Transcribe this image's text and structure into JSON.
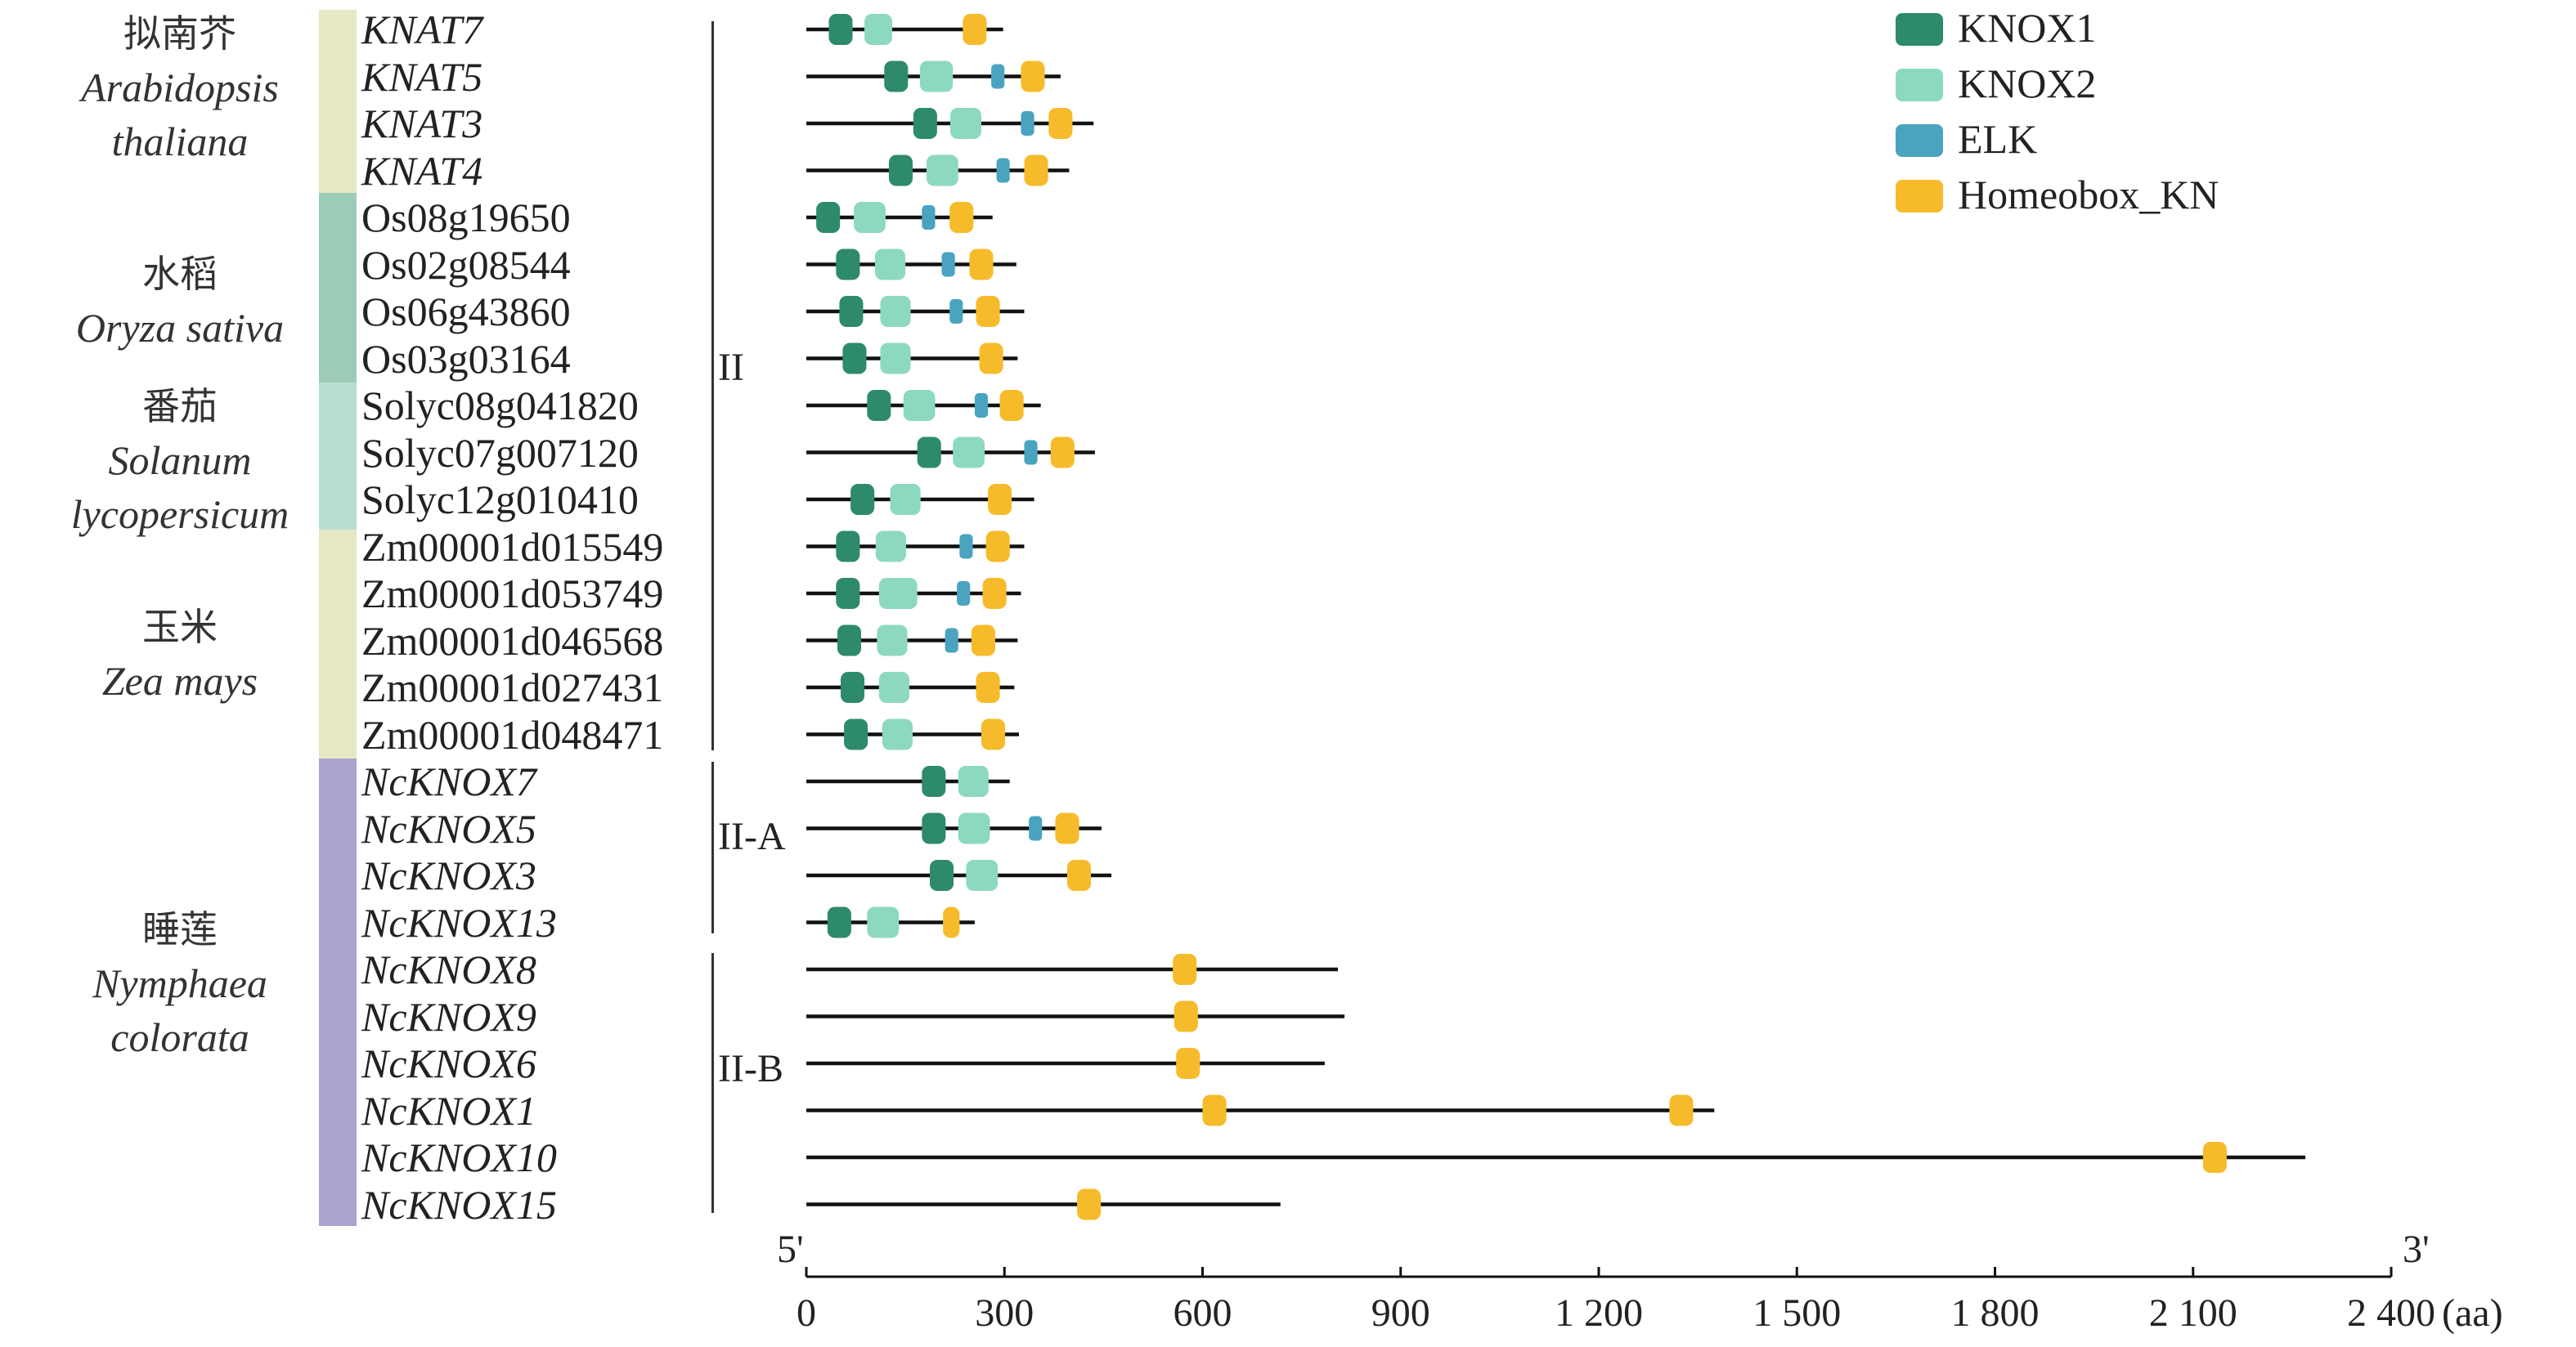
{
  "species": [
    {
      "cn": "拟南芥",
      "latin": [
        "Arabidopsis",
        "thaliana"
      ],
      "color": "#e6e8c3"
    },
    {
      "cn": "水稻",
      "latin": [
        "Oryza sativa"
      ],
      "color": "#9ccbb8"
    },
    {
      "cn": "番茄",
      "latin": [
        "Solanum",
        "lycopersicum"
      ],
      "color": "#b7dfd0"
    },
    {
      "cn": "玉米",
      "latin": [
        "Zea mays"
      ],
      "color": "#e6e8c3"
    },
    {
      "cn": "睡莲",
      "latin": [
        "Nymphaea",
        "colorata"
      ],
      "color": "#a9a4cf"
    }
  ],
  "group_labels": {
    "clade": "II",
    "subA": "II-A",
    "subB": "II-B"
  },
  "legend": [
    {
      "key": "KNOX1",
      "label": "KNOX1",
      "color": "#2e8a6c"
    },
    {
      "key": "KNOX2",
      "label": "KNOX2",
      "color": "#8dd9c0"
    },
    {
      "key": "ELK",
      "label": "ELK",
      "color": "#4aa3bf"
    },
    {
      "key": "HB",
      "label": "Homeobox_KN",
      "color": "#f6bb2a"
    }
  ],
  "axis": {
    "ticks": [
      "0",
      "300",
      "600",
      "900",
      "1 200",
      "1 500",
      "1 800",
      "2 100",
      "2 400"
    ],
    "unit": "(aa)",
    "left_end": "5'",
    "right_end": "3'",
    "max": 2400
  },
  "genes": [
    {
      "name": "KNAT7",
      "italic": true,
      "length": 298,
      "domains": [
        {
          "t": "KNOX1",
          "s": 34,
          "e": 70
        },
        {
          "t": "KNOX2",
          "s": 88,
          "e": 130
        },
        {
          "t": "HB",
          "s": 237,
          "e": 273
        }
      ]
    },
    {
      "name": "KNAT5",
      "italic": true,
      "length": 385,
      "domains": [
        {
          "t": "KNOX1",
          "s": 118,
          "e": 154
        },
        {
          "t": "KNOX2",
          "s": 172,
          "e": 222
        },
        {
          "t": "ELK",
          "s": 280,
          "e": 300
        },
        {
          "t": "HB",
          "s": 325,
          "e": 361
        }
      ]
    },
    {
      "name": "KNAT3",
      "italic": true,
      "length": 435,
      "domains": [
        {
          "t": "KNOX1",
          "s": 162,
          "e": 198
        },
        {
          "t": "KNOX2",
          "s": 218,
          "e": 265
        },
        {
          "t": "ELK",
          "s": 325,
          "e": 345
        },
        {
          "t": "HB",
          "s": 367,
          "e": 403
        }
      ]
    },
    {
      "name": "KNAT4",
      "italic": true,
      "length": 398,
      "domains": [
        {
          "t": "KNOX1",
          "s": 125,
          "e": 161
        },
        {
          "t": "KNOX2",
          "s": 182,
          "e": 230
        },
        {
          "t": "ELK",
          "s": 288,
          "e": 308
        },
        {
          "t": "HB",
          "s": 330,
          "e": 366
        }
      ]
    },
    {
      "name": "Os08g19650",
      "italic": false,
      "length": 282,
      "domains": [
        {
          "t": "KNOX1",
          "s": 15,
          "e": 51
        },
        {
          "t": "KNOX2",
          "s": 72,
          "e": 120
        },
        {
          "t": "ELK",
          "s": 175,
          "e": 195
        },
        {
          "t": "HB",
          "s": 217,
          "e": 253
        }
      ]
    },
    {
      "name": "Os02g08544",
      "italic": false,
      "length": 318,
      "domains": [
        {
          "t": "KNOX1",
          "s": 45,
          "e": 81
        },
        {
          "t": "KNOX2",
          "s": 104,
          "e": 150
        },
        {
          "t": "ELK",
          "s": 205,
          "e": 225
        },
        {
          "t": "HB",
          "s": 247,
          "e": 283
        }
      ]
    },
    {
      "name": "Os06g43860",
      "italic": false,
      "length": 330,
      "domains": [
        {
          "t": "KNOX1",
          "s": 50,
          "e": 86
        },
        {
          "t": "KNOX2",
          "s": 112,
          "e": 158
        },
        {
          "t": "ELK",
          "s": 217,
          "e": 237
        },
        {
          "t": "HB",
          "s": 257,
          "e": 293
        }
      ]
    },
    {
      "name": "Os03g03164",
      "italic": false,
      "length": 320,
      "domains": [
        {
          "t": "KNOX1",
          "s": 55,
          "e": 91
        },
        {
          "t": "KNOX2",
          "s": 112,
          "e": 158
        },
        {
          "t": "HB",
          "s": 262,
          "e": 298
        }
      ]
    },
    {
      "name": "Solyc08g041820",
      "italic": false,
      "length": 355,
      "domains": [
        {
          "t": "KNOX1",
          "s": 92,
          "e": 128
        },
        {
          "t": "KNOX2",
          "s": 147,
          "e": 195
        },
        {
          "t": "ELK",
          "s": 255,
          "e": 275
        },
        {
          "t": "HB",
          "s": 293,
          "e": 329
        }
      ]
    },
    {
      "name": "Solyc07g007120",
      "italic": false,
      "length": 437,
      "domains": [
        {
          "t": "KNOX1",
          "s": 168,
          "e": 204
        },
        {
          "t": "KNOX2",
          "s": 222,
          "e": 270
        },
        {
          "t": "ELK",
          "s": 330,
          "e": 350
        },
        {
          "t": "HB",
          "s": 370,
          "e": 406
        }
      ]
    },
    {
      "name": "Solyc12g010410",
      "italic": false,
      "length": 345,
      "domains": [
        {
          "t": "KNOX1",
          "s": 67,
          "e": 103
        },
        {
          "t": "KNOX2",
          "s": 127,
          "e": 173
        },
        {
          "t": "HB",
          "s": 275,
          "e": 311
        }
      ]
    },
    {
      "name": "Zm00001d015549",
      "italic": false,
      "length": 330,
      "domains": [
        {
          "t": "KNOX1",
          "s": 45,
          "e": 81
        },
        {
          "t": "KNOX2",
          "s": 105,
          "e": 151
        },
        {
          "t": "ELK",
          "s": 232,
          "e": 252
        },
        {
          "t": "HB",
          "s": 272,
          "e": 308
        }
      ]
    },
    {
      "name": "Zm00001d053749",
      "italic": false,
      "length": 325,
      "domains": [
        {
          "t": "KNOX1",
          "s": 45,
          "e": 81
        },
        {
          "t": "KNOX2",
          "s": 110,
          "e": 168
        },
        {
          "t": "ELK",
          "s": 228,
          "e": 248
        },
        {
          "t": "HB",
          "s": 267,
          "e": 303
        }
      ]
    },
    {
      "name": "Zm00001d046568",
      "italic": false,
      "length": 320,
      "domains": [
        {
          "t": "KNOX1",
          "s": 47,
          "e": 83
        },
        {
          "t": "KNOX2",
          "s": 107,
          "e": 153
        },
        {
          "t": "ELK",
          "s": 210,
          "e": 230
        },
        {
          "t": "HB",
          "s": 250,
          "e": 286
        }
      ]
    },
    {
      "name": "Zm00001d027431",
      "italic": false,
      "length": 315,
      "domains": [
        {
          "t": "KNOX1",
          "s": 52,
          "e": 88
        },
        {
          "t": "KNOX2",
          "s": 110,
          "e": 156
        },
        {
          "t": "HB",
          "s": 257,
          "e": 293
        }
      ]
    },
    {
      "name": "Zm00001d048471",
      "italic": false,
      "length": 322,
      "domains": [
        {
          "t": "KNOX1",
          "s": 57,
          "e": 93
        },
        {
          "t": "KNOX2",
          "s": 115,
          "e": 161
        },
        {
          "t": "HB",
          "s": 265,
          "e": 301
        }
      ]
    },
    {
      "name": "NcKNOX7",
      "italic": true,
      "length": 308,
      "domains": [
        {
          "t": "KNOX1",
          "s": 175,
          "e": 211
        },
        {
          "t": "KNOX2",
          "s": 230,
          "e": 276
        }
      ]
    },
    {
      "name": "NcKNOX5",
      "italic": true,
      "length": 447,
      "domains": [
        {
          "t": "KNOX1",
          "s": 175,
          "e": 211
        },
        {
          "t": "KNOX2",
          "s": 230,
          "e": 278
        },
        {
          "t": "ELK",
          "s": 337,
          "e": 357
        },
        {
          "t": "HB",
          "s": 377,
          "e": 413
        }
      ]
    },
    {
      "name": "NcKNOX3",
      "italic": true,
      "length": 462,
      "domains": [
        {
          "t": "KNOX1",
          "s": 187,
          "e": 223
        },
        {
          "t": "KNOX2",
          "s": 242,
          "e": 290
        },
        {
          "t": "HB",
          "s": 395,
          "e": 431
        }
      ]
    },
    {
      "name": "NcKNOX13",
      "italic": true,
      "length": 255,
      "domains": [
        {
          "t": "KNOX1",
          "s": 32,
          "e": 68
        },
        {
          "t": "KNOX2",
          "s": 92,
          "e": 140
        },
        {
          "t": "HB",
          "s": 207,
          "e": 232
        }
      ]
    },
    {
      "name": "NcKNOX8",
      "italic": true,
      "length": 805,
      "domains": [
        {
          "t": "HB",
          "s": 555,
          "e": 591
        }
      ]
    },
    {
      "name": "NcKNOX9",
      "italic": true,
      "length": 815,
      "domains": [
        {
          "t": "HB",
          "s": 557,
          "e": 593
        }
      ]
    },
    {
      "name": "NcKNOX6",
      "italic": true,
      "length": 785,
      "domains": [
        {
          "t": "HB",
          "s": 560,
          "e": 596
        }
      ]
    },
    {
      "name": "NcKNOX1",
      "italic": true,
      "length": 1375,
      "domains": [
        {
          "t": "HB",
          "s": 600,
          "e": 636
        },
        {
          "t": "HB",
          "s": 1307,
          "e": 1343
        }
      ]
    },
    {
      "name": "NcKNOX10",
      "italic": true,
      "length": 2270,
      "domains": [
        {
          "t": "HB",
          "s": 2115,
          "e": 2151
        }
      ]
    },
    {
      "name": "NcKNOX15",
      "italic": true,
      "length": 718,
      "domains": [
        {
          "t": "HB",
          "s": 410,
          "e": 446
        }
      ]
    }
  ]
}
